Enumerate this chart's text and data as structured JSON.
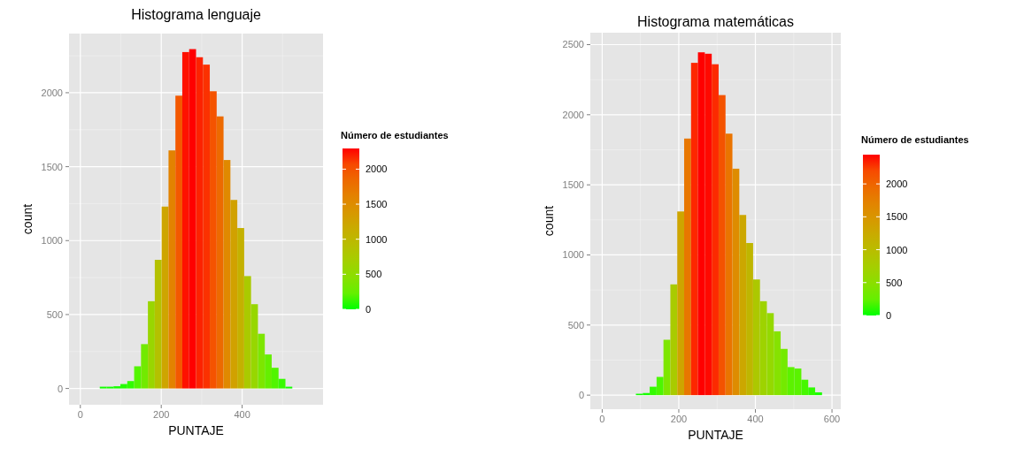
{
  "chart_data": [
    {
      "type": "histogram",
      "title": "Histograma lenguaje",
      "xlabel": "PUNTAJE",
      "ylabel": "count",
      "legend_title": "Número de estudiantes",
      "bins": [
        48,
        65,
        82,
        99,
        116,
        133,
        150,
        167,
        184,
        201,
        218,
        235,
        252,
        269,
        286,
        303,
        320,
        337,
        354,
        371,
        388,
        405,
        422,
        439,
        456,
        473,
        490,
        507,
        524
      ],
      "values": [
        12,
        12,
        15,
        30,
        50,
        150,
        300,
        590,
        870,
        1230,
        1610,
        1980,
        2275,
        2295,
        2240,
        2190,
        2010,
        1840,
        1545,
        1275,
        1085,
        760,
        570,
        370,
        230,
        140,
        65,
        12
      ],
      "xlim": [
        -28,
        600
      ],
      "xticks": [
        0,
        200,
        400
      ],
      "ylim": [
        -110,
        2400
      ],
      "yticks": [
        0,
        500,
        1000,
        1500,
        2000
      ],
      "clim": [
        0,
        2295
      ],
      "cticks": [
        0,
        500,
        1000,
        1500,
        2000
      ],
      "grid": true
    },
    {
      "type": "histogram",
      "title": "Histograma matemáticas",
      "xlabel": "PUNTAJE",
      "ylabel": "count",
      "legend_title": "Número de estudiantes",
      "bins": [
        88,
        106,
        124,
        142,
        160,
        178,
        196,
        214,
        232,
        250,
        268,
        286,
        304,
        322,
        340,
        358,
        376,
        394,
        412,
        430,
        448,
        466,
        484,
        502,
        520,
        538,
        556,
        574
      ],
      "values": [
        10,
        15,
        60,
        130,
        395,
        790,
        1310,
        1830,
        2370,
        2445,
        2435,
        2360,
        2140,
        1865,
        1615,
        1285,
        1085,
        825,
        670,
        585,
        455,
        330,
        200,
        190,
        110,
        55,
        20
      ],
      "xlim": [
        -31,
        623
      ],
      "xticks": [
        0,
        200,
        400,
        600
      ],
      "ylim": [
        -100,
        2585
      ],
      "yticks": [
        0,
        500,
        1000,
        1500,
        2000,
        2500
      ],
      "clim": [
        0,
        2445
      ],
      "cticks": [
        0,
        500,
        1000,
        1500,
        2000
      ],
      "grid": true
    }
  ]
}
